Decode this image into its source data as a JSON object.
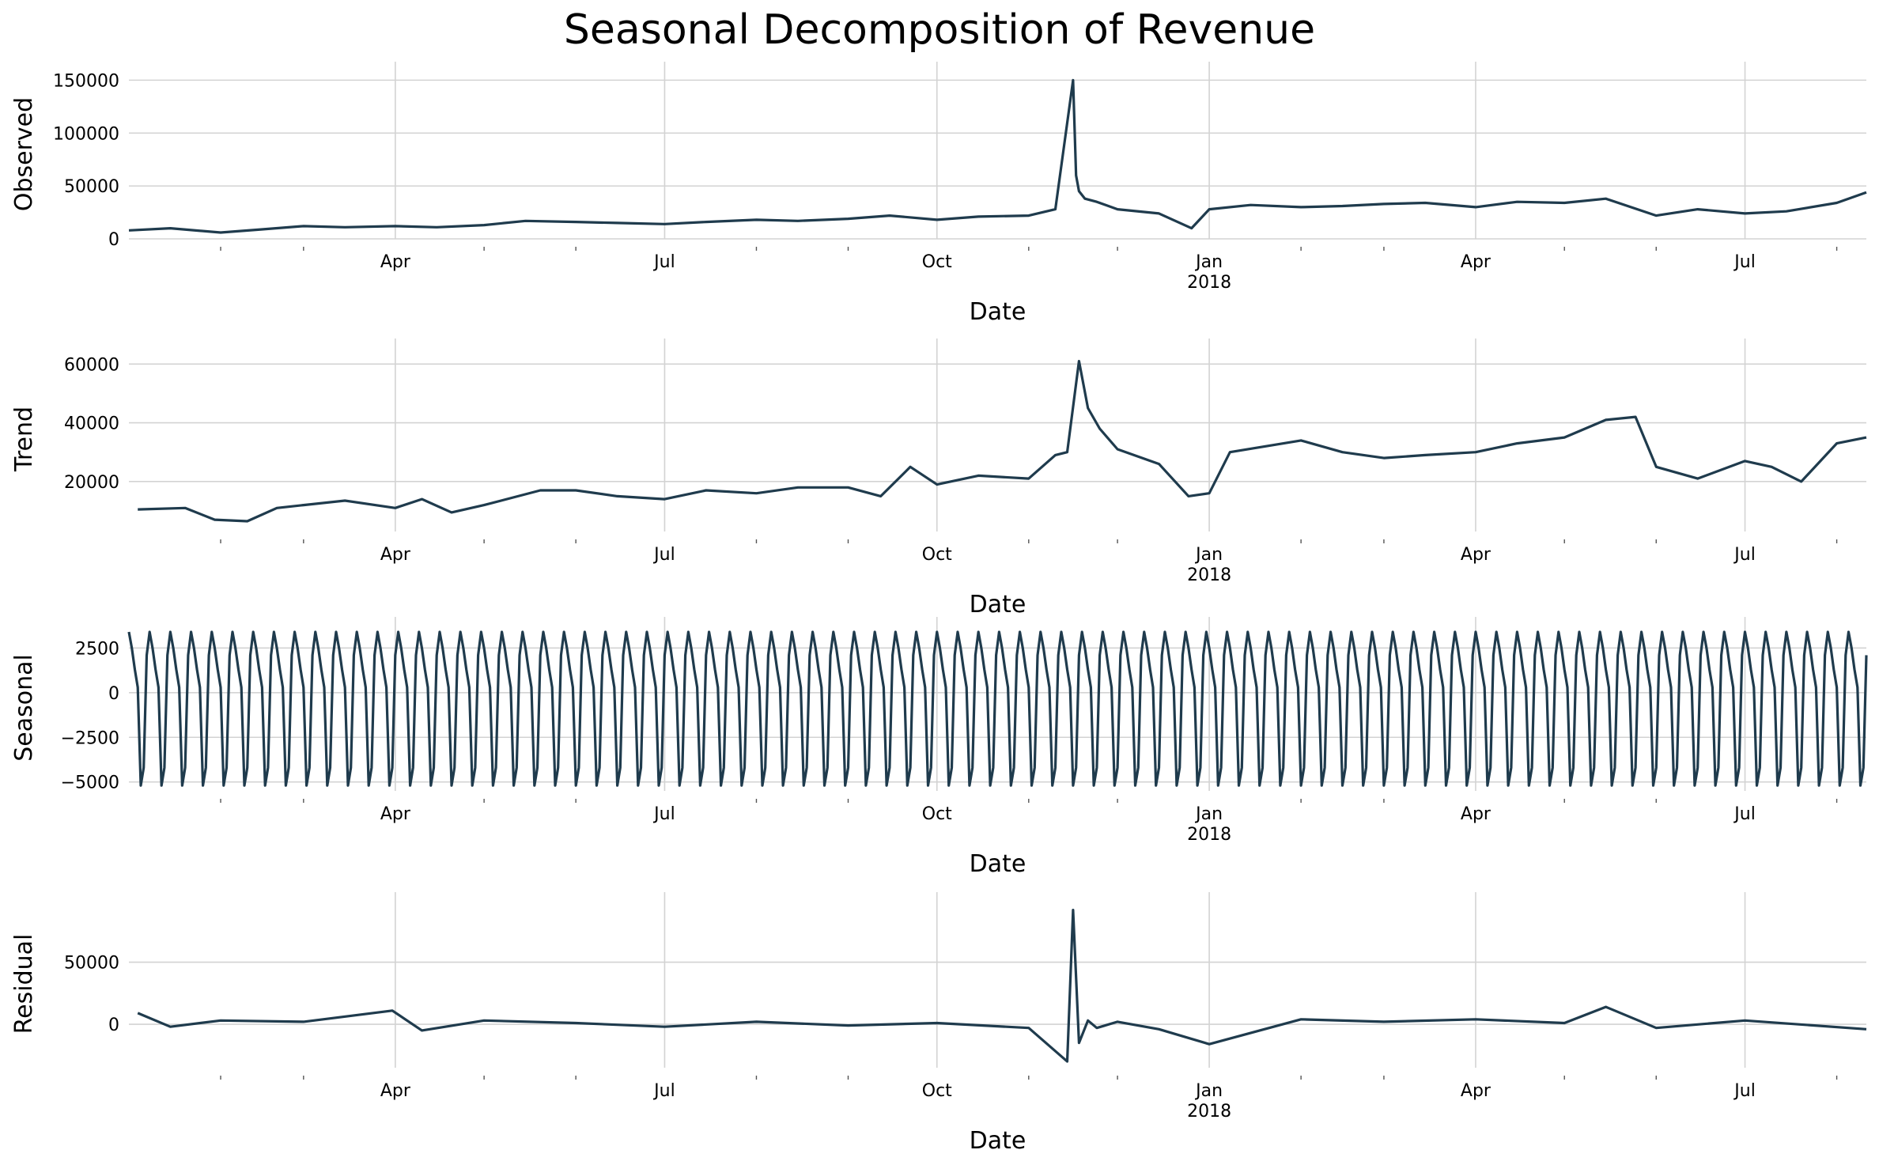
{
  "chart_data": {
    "type": "line",
    "title": "Seasonal Decomposition of Revenue",
    "x_range": [
      "2017-01-01",
      "2018-08-11"
    ],
    "x_ticks": [
      {
        "date": "2017-04-01",
        "label": "Apr"
      },
      {
        "date": "2017-07-01",
        "label": "Jul"
      },
      {
        "date": "2017-10-01",
        "label": "Oct"
      },
      {
        "date": "2018-01-01",
        "label": "Jan",
        "year": "2018"
      },
      {
        "date": "2018-04-01",
        "label": "Apr"
      },
      {
        "date": "2018-07-01",
        "label": "Jul"
      }
    ],
    "x_minor_ticks": [
      "2017-02-01",
      "2017-03-01",
      "2017-05-01",
      "2017-06-01",
      "2017-08-01",
      "2017-09-01",
      "2017-11-01",
      "2017-12-01",
      "2018-02-01",
      "2018-03-01",
      "2018-05-01",
      "2018-06-01",
      "2018-08-01"
    ],
    "grid": true,
    "color": "#1f3b4d",
    "panels": [
      {
        "name": "observed",
        "ylabel": "Observed",
        "xlabel": "Date",
        "ylim": [
          0,
          160000
        ],
        "yticks": [
          0,
          50000,
          100000,
          150000
        ],
        "ytick_labels": [
          "0",
          "50000",
          "100000",
          "150000"
        ],
        "series": {
          "x": [
            "2017-01-01",
            "2017-01-15",
            "2017-02-01",
            "2017-02-15",
            "2017-03-01",
            "2017-03-15",
            "2017-04-01",
            "2017-04-15",
            "2017-05-01",
            "2017-05-15",
            "2017-06-01",
            "2017-06-15",
            "2017-07-01",
            "2017-07-15",
            "2017-08-01",
            "2017-08-15",
            "2017-09-01",
            "2017-09-15",
            "2017-10-01",
            "2017-10-15",
            "2017-11-01",
            "2017-11-10",
            "2017-11-16",
            "2017-11-17",
            "2017-11-18",
            "2017-11-20",
            "2017-11-24",
            "2017-12-01",
            "2017-12-15",
            "2017-12-26",
            "2018-01-01",
            "2018-01-15",
            "2018-02-01",
            "2018-02-15",
            "2018-03-01",
            "2018-03-15",
            "2018-04-01",
            "2018-04-15",
            "2018-05-01",
            "2018-05-15",
            "2018-06-01",
            "2018-06-15",
            "2018-07-01",
            "2018-07-15",
            "2018-08-01",
            "2018-08-11"
          ],
          "y": [
            8000,
            10000,
            6000,
            9000,
            12000,
            11000,
            12000,
            11000,
            13000,
            17000,
            16000,
            15000,
            14000,
            16000,
            18000,
            17000,
            19000,
            22000,
            18000,
            21000,
            22000,
            28000,
            150000,
            60000,
            45000,
            38000,
            35000,
            28000,
            24000,
            10000,
            28000,
            32000,
            30000,
            31000,
            33000,
            34000,
            30000,
            35000,
            34000,
            38000,
            22000,
            28000,
            24000,
            26000,
            34000,
            44000
          ]
        }
      },
      {
        "name": "trend",
        "ylabel": "Trend",
        "xlabel": "Date",
        "ylim": [
          3000,
          66000
        ],
        "yticks": [
          20000,
          40000,
          60000
        ],
        "ytick_labels": [
          "20000",
          "40000",
          "60000"
        ],
        "series": {
          "x": [
            "2017-01-04",
            "2017-01-20",
            "2017-01-30",
            "2017-02-10",
            "2017-02-20",
            "2017-03-01",
            "2017-03-15",
            "2017-04-01",
            "2017-04-10",
            "2017-04-20",
            "2017-05-01",
            "2017-05-20",
            "2017-06-01",
            "2017-06-15",
            "2017-07-01",
            "2017-07-15",
            "2017-08-01",
            "2017-08-15",
            "2017-09-01",
            "2017-09-12",
            "2017-09-22",
            "2017-10-01",
            "2017-10-15",
            "2017-11-01",
            "2017-11-10",
            "2017-11-14",
            "2017-11-18",
            "2017-11-21",
            "2017-11-25",
            "2017-12-01",
            "2017-12-15",
            "2017-12-25",
            "2018-01-01",
            "2018-01-08",
            "2018-02-01",
            "2018-02-15",
            "2018-03-01",
            "2018-03-15",
            "2018-04-01",
            "2018-04-15",
            "2018-05-01",
            "2018-05-15",
            "2018-05-25",
            "2018-06-01",
            "2018-06-15",
            "2018-07-01",
            "2018-07-10",
            "2018-07-20",
            "2018-08-01",
            "2018-08-11"
          ],
          "y": [
            10500,
            11000,
            7000,
            6500,
            11000,
            12000,
            13500,
            11000,
            14000,
            9500,
            12000,
            17000,
            17000,
            15000,
            14000,
            17000,
            16000,
            18000,
            18000,
            15000,
            25000,
            19000,
            22000,
            21000,
            29000,
            30000,
            61000,
            45000,
            38000,
            31000,
            26000,
            15000,
            16000,
            30000,
            34000,
            30000,
            28000,
            29000,
            30000,
            33000,
            35000,
            41000,
            42000,
            25000,
            21000,
            27000,
            25000,
            20000,
            33000,
            35000
          ]
        }
      },
      {
        "name": "seasonal",
        "ylabel": "Seasonal",
        "xlabel": "Date",
        "ylim": [
          -5500,
          3800
        ],
        "yticks": [
          -5000,
          -2500,
          0,
          2500
        ],
        "ytick_labels": [
          "−5000",
          "−2500",
          "0",
          "2500"
        ],
        "period_days": 7,
        "weekly_pattern": [
          3400,
          2500,
          1300,
          300,
          -5200,
          -4200,
          2100
        ]
      },
      {
        "name": "residual",
        "ylabel": "Residual",
        "xlabel": "Date",
        "ylim": [
          -35000,
          100000
        ],
        "yticks": [
          0,
          50000
        ],
        "ytick_labels": [
          "0",
          "50000"
        ],
        "series": {
          "x": [
            "2017-01-04",
            "2017-01-15",
            "2017-02-01",
            "2017-03-01",
            "2017-03-31",
            "2017-04-10",
            "2017-05-01",
            "2017-06-01",
            "2017-07-01",
            "2017-08-01",
            "2017-09-01",
            "2017-10-01",
            "2017-11-01",
            "2017-11-14",
            "2017-11-16",
            "2017-11-18",
            "2017-11-21",
            "2017-11-24",
            "2017-12-01",
            "2017-12-15",
            "2018-01-01",
            "2018-02-01",
            "2018-03-01",
            "2018-04-01",
            "2018-05-01",
            "2018-05-15",
            "2018-06-01",
            "2018-07-01",
            "2018-08-11"
          ],
          "y": [
            9000,
            -2000,
            3000,
            2000,
            11000,
            -5000,
            3000,
            1000,
            -2000,
            2000,
            -1000,
            1000,
            -3000,
            -30000,
            92000,
            -15000,
            3000,
            -3000,
            2000,
            -4000,
            -16000,
            4000,
            2000,
            4000,
            1000,
            14000,
            -3000,
            3000,
            -4000
          ]
        }
      }
    ]
  }
}
